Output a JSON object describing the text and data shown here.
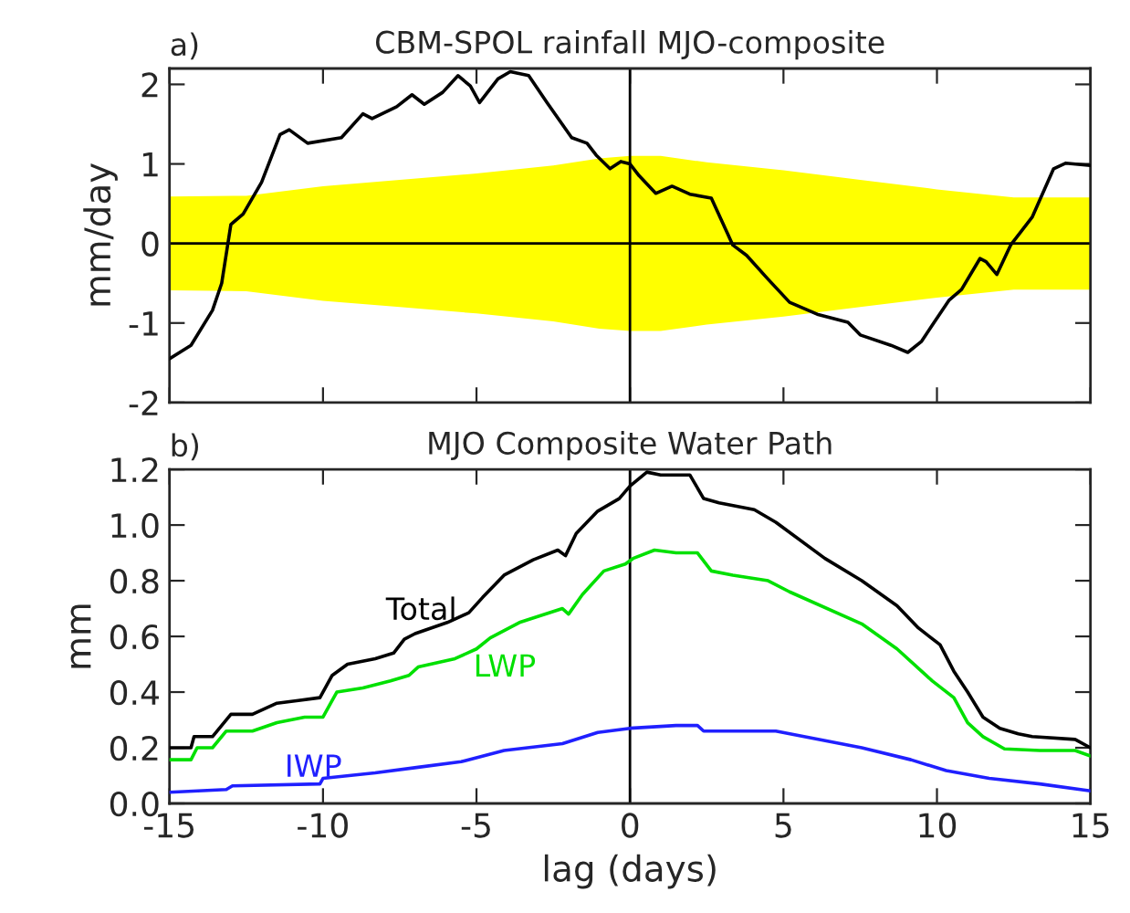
{
  "chart_data": [
    {
      "type": "line",
      "title": "CBM-SPOL rainfall MJO-composite",
      "ylabel": "mm/day",
      "annotations": [
        "a)"
      ],
      "xlim": [
        -15,
        15
      ],
      "xticks": [
        -15,
        -10,
        -5,
        0,
        5,
        10,
        15
      ],
      "ylim": [
        -2,
        2.2
      ],
      "yticks": [
        -2,
        -1,
        0,
        1,
        2
      ],
      "tick_labels": "y",
      "grid": false,
      "ref_lines": [
        {
          "axis": "y",
          "value": 0,
          "color": "#000000"
        },
        {
          "axis": "x",
          "value": 0,
          "color": "#000000"
        }
      ],
      "series": [
        {
          "type": "area",
          "color": "#ffff00",
          "x": [
            -15,
            -12.5,
            -10,
            -7.5,
            -5,
            -2.5,
            -1,
            0,
            1,
            2.5,
            5,
            7.5,
            10,
            12.5,
            15
          ],
          "values": [
            0.59,
            0.6,
            0.72,
            0.8,
            0.88,
            0.98,
            1.07,
            1.1,
            1.1,
            1.02,
            0.92,
            0.8,
            0.68,
            0.58,
            0.58
          ]
        },
        {
          "type": "area",
          "color": "#ffff00",
          "x": [
            -15,
            -12.5,
            -10,
            -7.5,
            -5,
            -2.5,
            -1,
            0,
            1,
            2.5,
            5,
            7.5,
            10,
            12.5,
            15
          ],
          "values": [
            -0.59,
            -0.6,
            -0.72,
            -0.8,
            -0.88,
            -0.98,
            -1.07,
            -1.1,
            -1.1,
            -1.02,
            -0.92,
            -0.8,
            -0.68,
            -0.58,
            -0.58
          ]
        },
        {
          "type": "line",
          "color": "#000000",
          "x": [
            -15,
            -14.3,
            -13.6,
            -13.3,
            -13.0,
            -12.6,
            -12.0,
            -11.4,
            -11.1,
            -10.5,
            -9.4,
            -8.7,
            -8.4,
            -7.6,
            -7.1,
            -6.7,
            -6.1,
            -5.6,
            -5.2,
            -4.9,
            -4.3,
            -3.9,
            -3.3,
            -2.7,
            -1.9,
            -1.4,
            -1.1,
            -0.65,
            -0.3,
            0,
            0.3,
            0.84,
            1.37,
            1.95,
            2.65,
            3.35,
            3.8,
            4.5,
            5.2,
            6.1,
            7.1,
            7.5,
            8.5,
            9.05,
            9.5,
            9.86,
            10.4,
            10.8,
            11.4,
            11.6,
            11.95,
            12.4,
            13.1,
            13.8,
            14.2,
            15
          ],
          "values": [
            -1.45,
            -1.28,
            -0.84,
            -0.5,
            0.24,
            0.37,
            0.77,
            1.37,
            1.43,
            1.26,
            1.33,
            1.63,
            1.57,
            1.72,
            1.87,
            1.75,
            1.9,
            2.11,
            1.98,
            1.77,
            2.07,
            2.16,
            2.11,
            1.77,
            1.33,
            1.26,
            1.11,
            0.94,
            1.03,
            1.0,
            0.85,
            0.63,
            0.72,
            0.62,
            0.57,
            -0.02,
            -0.15,
            -0.45,
            -0.74,
            -0.89,
            -0.99,
            -1.15,
            -1.28,
            -1.37,
            -1.23,
            -1.02,
            -0.71,
            -0.58,
            -0.19,
            -0.23,
            -0.39,
            -0.02,
            0.33,
            0.94,
            1.01,
            0.98
          ]
        }
      ]
    },
    {
      "type": "line",
      "title": "MJO Composite Water Path",
      "xlabel": "lag (days)",
      "ylabel": "mm",
      "annotations": [
        "b)"
      ],
      "xlim": [
        -15,
        15
      ],
      "xticks": [
        -15,
        -10,
        -5,
        0,
        5,
        10,
        15
      ],
      "ylim": [
        0,
        1.2
      ],
      "yticks": [
        {
          "value": 0,
          "label": "0.0"
        },
        {
          "value": 0.2,
          "label": "0.2"
        },
        {
          "value": 0.4,
          "label": "0.4"
        },
        {
          "value": 0.6,
          "label": "0.6"
        },
        {
          "value": 0.8,
          "label": "0.8"
        },
        {
          "value": 1.0,
          "label": "1.0"
        },
        {
          "value": 1.2,
          "label": "1.2"
        }
      ],
      "grid": false,
      "ref_lines": [
        {
          "axis": "x",
          "value": 0,
          "color": "#000000"
        }
      ],
      "series": [
        {
          "name": "Total",
          "color": "#000000",
          "x": [
            -15,
            -14.3,
            -14.2,
            -13.6,
            -13.0,
            -12.3,
            -11.5,
            -10.8,
            -10.1,
            -9.7,
            -9.2,
            -8.3,
            -7.7,
            -7.35,
            -7.0,
            -5.95,
            -5.25,
            -4.8,
            -4.1,
            -3.15,
            -2.35,
            -2.1,
            -1.75,
            -1.05,
            -0.35,
            0,
            0.55,
            1.0,
            1.95,
            2.4,
            2.9,
            4.05,
            4.75,
            6.35,
            7.55,
            8.7,
            9.4,
            10.1,
            10.55,
            11.0,
            11.5,
            12.05,
            12.65,
            13.1,
            14.5,
            15
          ],
          "values": [
            0.2,
            0.2,
            0.24,
            0.24,
            0.32,
            0.32,
            0.36,
            0.37,
            0.38,
            0.46,
            0.5,
            0.52,
            0.54,
            0.59,
            0.61,
            0.65,
            0.685,
            0.74,
            0.82,
            0.875,
            0.91,
            0.89,
            0.97,
            1.05,
            1.095,
            1.14,
            1.19,
            1.18,
            1.18,
            1.095,
            1.08,
            1.055,
            1.01,
            0.88,
            0.8,
            0.71,
            0.63,
            0.57,
            0.475,
            0.4,
            0.31,
            0.27,
            0.25,
            0.24,
            0.23,
            0.2
          ]
        },
        {
          "name": "LWP",
          "color": "#00e000",
          "x": [
            -15,
            -14.3,
            -14.1,
            -13.6,
            -13.15,
            -12.3,
            -11.5,
            -10.6,
            -10.0,
            -9.55,
            -8.7,
            -7.8,
            -7.2,
            -6.9,
            -5.7,
            -5.0,
            -4.55,
            -3.6,
            -2.2,
            -2.0,
            -1.55,
            -0.85,
            -0.15,
            0.1,
            0.8,
            1.5,
            2.2,
            2.65,
            3.35,
            4.5,
            5.2,
            7.55,
            8.7,
            9.85,
            10.55,
            11.0,
            11.5,
            12.2,
            13.35,
            14.5,
            15
          ],
          "values": [
            0.157,
            0.157,
            0.2,
            0.2,
            0.26,
            0.26,
            0.29,
            0.31,
            0.31,
            0.4,
            0.415,
            0.44,
            0.46,
            0.49,
            0.52,
            0.555,
            0.595,
            0.65,
            0.7,
            0.68,
            0.75,
            0.835,
            0.86,
            0.88,
            0.91,
            0.9,
            0.9,
            0.835,
            0.82,
            0.8,
            0.76,
            0.645,
            0.555,
            0.44,
            0.38,
            0.29,
            0.24,
            0.196,
            0.19,
            0.19,
            0.17
          ]
        },
        {
          "name": "IWP",
          "color": "#2020ff",
          "x": [
            -15,
            -13.15,
            -12.95,
            -10.1,
            -10.0,
            -8.3,
            -6.9,
            -5.5,
            -4.1,
            -2.2,
            -1.05,
            0,
            1.5,
            2.2,
            2.4,
            4.75,
            7.55,
            9.15,
            10.3,
            11.7,
            13.35,
            15
          ],
          "values": [
            0.04,
            0.05,
            0.063,
            0.07,
            0.09,
            0.11,
            0.13,
            0.15,
            0.19,
            0.215,
            0.255,
            0.27,
            0.28,
            0.28,
            0.26,
            0.26,
            0.2,
            0.157,
            0.118,
            0.09,
            0.07,
            0.045
          ]
        }
      ]
    }
  ]
}
